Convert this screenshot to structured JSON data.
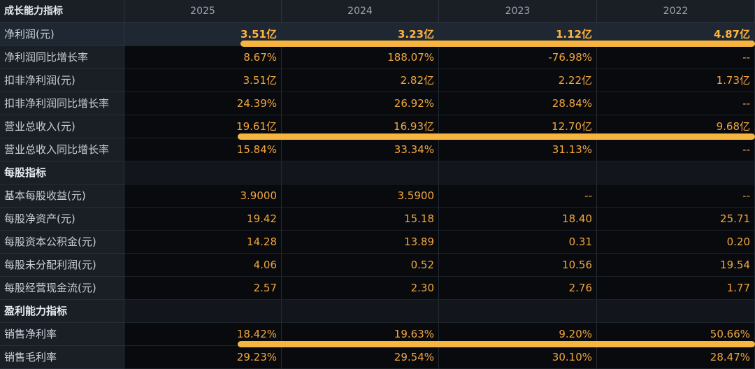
{
  "columns": [
    "2025",
    "2024",
    "2023",
    "2022"
  ],
  "header_label": "成长能力指标",
  "rows": [
    {
      "label": "净利润(元)",
      "values": [
        "3.51亿",
        "3.23亿",
        "1.12亿",
        "4.87亿"
      ],
      "highlight": true
    },
    {
      "label": "净利润同比增长率",
      "values": [
        "8.67%",
        "188.07%",
        "-76.98%",
        "--"
      ]
    },
    {
      "label": "扣非净利润(元)",
      "values": [
        "3.51亿",
        "2.82亿",
        "2.22亿",
        "1.73亿"
      ]
    },
    {
      "label": "扣非净利润同比增长率",
      "values": [
        "24.39%",
        "26.92%",
        "28.84%",
        "--"
      ]
    },
    {
      "label": "营业总收入(元)",
      "values": [
        "19.61亿",
        "16.93亿",
        "12.70亿",
        "9.68亿"
      ]
    },
    {
      "label": "营业总收入同比增长率",
      "values": [
        "15.84%",
        "33.34%",
        "31.13%",
        "--"
      ]
    },
    {
      "label": "每股指标",
      "section": true,
      "values": [
        "",
        "",
        "",
        ""
      ]
    },
    {
      "label": "基本每股收益(元)",
      "values": [
        "3.9000",
        "3.5900",
        "--",
        "--"
      ]
    },
    {
      "label": "每股净资产(元)",
      "values": [
        "19.42",
        "15.18",
        "18.40",
        "25.71"
      ]
    },
    {
      "label": "每股资本公积金(元)",
      "values": [
        "14.28",
        "13.89",
        "0.31",
        "0.20"
      ]
    },
    {
      "label": "每股未分配利润(元)",
      "values": [
        "4.06",
        "0.52",
        "10.56",
        "19.54"
      ]
    },
    {
      "label": "每股经营现金流(元)",
      "values": [
        "2.57",
        "2.30",
        "2.76",
        "1.77"
      ]
    },
    {
      "label": "盈利能力指标",
      "section": true,
      "values": [
        "",
        "",
        "",
        ""
      ]
    },
    {
      "label": "销售净利率",
      "values": [
        "18.42%",
        "19.63%",
        "9.20%",
        "50.66%"
      ]
    },
    {
      "label": "销售毛利率",
      "values": [
        "29.23%",
        "29.54%",
        "30.10%",
        "28.47%"
      ]
    }
  ],
  "accent_color": "#f5b53f",
  "value_color": "#f2a640"
}
